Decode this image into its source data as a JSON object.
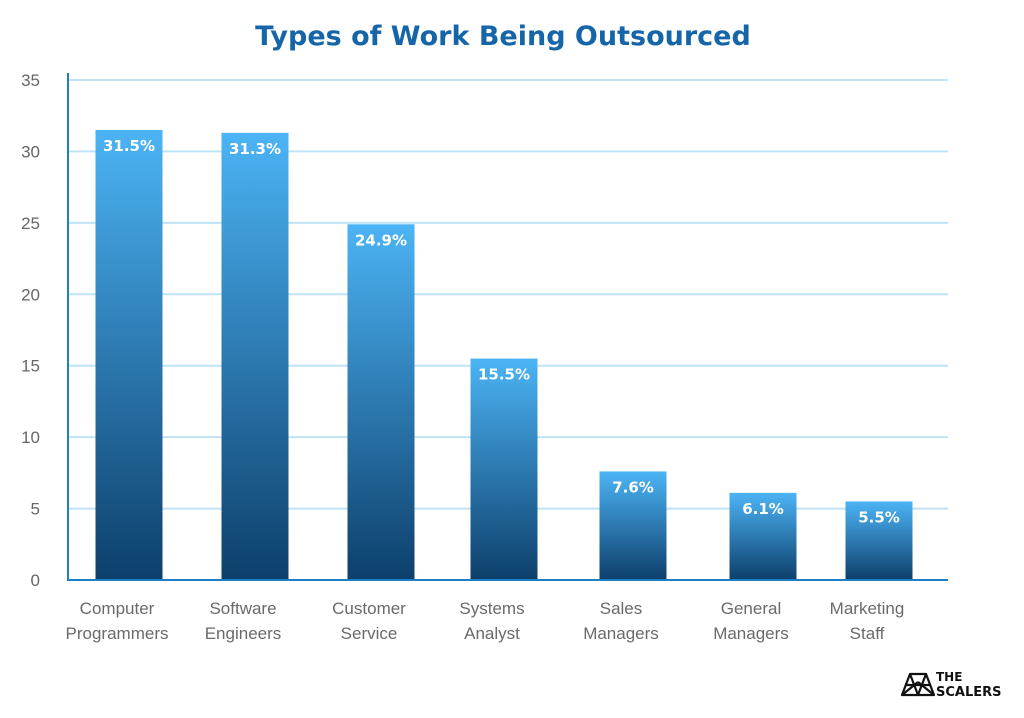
{
  "chart_data": {
    "type": "bar",
    "title": "Types of Work Being Outsourced",
    "xlabel": "",
    "ylabel": "",
    "ylim": [
      0,
      35
    ],
    "yticks": [
      0,
      5,
      10,
      15,
      20,
      25,
      30,
      35
    ],
    "grid": true,
    "categories": [
      [
        "Computer",
        "Programmers"
      ],
      [
        "Software",
        "Engineers"
      ],
      [
        "Customer",
        "Service"
      ],
      [
        "Systems",
        "Analyst"
      ],
      [
        "Sales",
        "Managers"
      ],
      [
        "General",
        "Managers"
      ],
      [
        "Marketing",
        "Staff"
      ]
    ],
    "values": [
      31.5,
      31.3,
      24.9,
      15.5,
      7.6,
      6.1,
      5.5
    ],
    "data_labels": [
      "31.5%",
      "31.3%",
      "24.9%",
      "15.5%",
      "7.6%",
      "6.1%",
      "5.5%"
    ]
  },
  "colors": {
    "title": "#1565a8",
    "bar_top": "#4cb4f5",
    "bar_bottom": "#0d3f6b",
    "axis": "#1f7fc4",
    "grid": "#bfe3f5"
  },
  "logo": {
    "line1": "THE",
    "line2": "SCALERS"
  }
}
